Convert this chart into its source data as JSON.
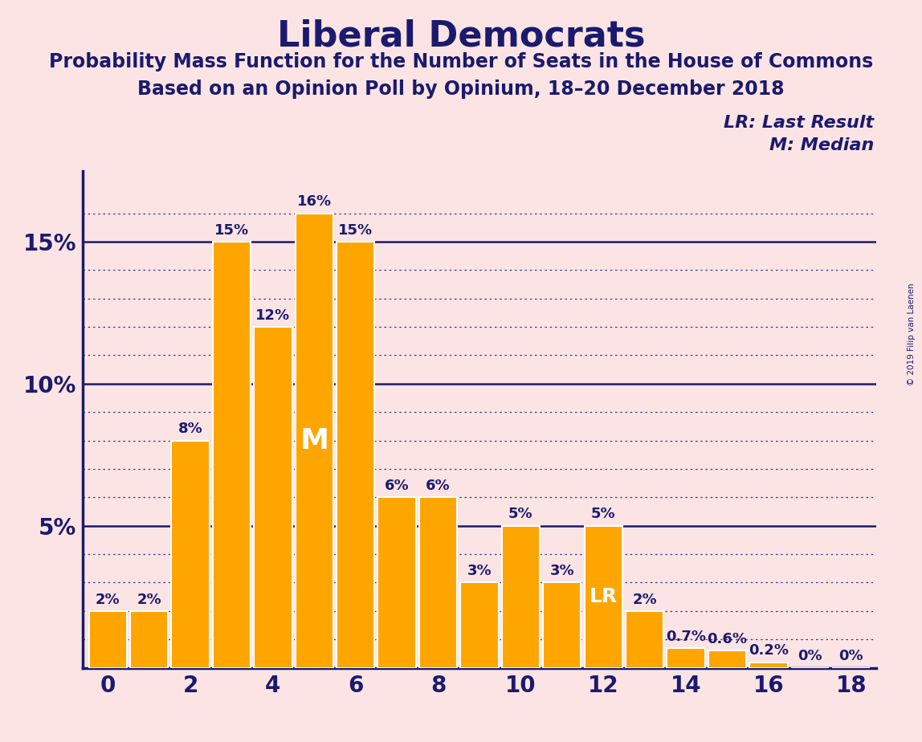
{
  "title": "Liberal Democrats",
  "subtitle1": "Probability Mass Function for the Number of Seats in the House of Commons",
  "subtitle2": "Based on an Opinion Poll by Opinium, 18–20 December 2018",
  "copyright": "© 2019 Filip van Laenen",
  "background_color": "#fce4e4",
  "bar_color": "#FFA500",
  "bar_edge_color": "#ffffff",
  "text_color": "#1a1a6e",
  "axis_color": "#1a1a6e",
  "categories": [
    0,
    1,
    2,
    3,
    4,
    5,
    6,
    7,
    8,
    9,
    10,
    11,
    12,
    13,
    14,
    15,
    16,
    17,
    18
  ],
  "values": [
    2.0,
    2.0,
    8.0,
    15.0,
    12.0,
    16.0,
    15.0,
    6.0,
    6.0,
    3.0,
    5.0,
    3.0,
    5.0,
    2.0,
    0.7,
    0.6,
    0.2,
    0.0,
    0.0
  ],
  "labels": [
    "2%",
    "2%",
    "8%",
    "15%",
    "12%",
    "16%",
    "15%",
    "6%",
    "6%",
    "3%",
    "5%",
    "3%",
    "5%",
    "2%",
    "0.7%",
    "0.6%",
    "0.2%",
    "0%",
    "0%"
  ],
  "median_bar": 5,
  "lr_bar": 12,
  "ylim": [
    0,
    17.5
  ],
  "yticks": [
    0,
    5,
    10,
    15
  ],
  "ytick_labels": [
    "",
    "5%",
    "10%",
    "15%"
  ],
  "xticks": [
    0,
    2,
    4,
    6,
    8,
    10,
    12,
    14,
    16,
    18
  ],
  "legend_lr": "LR: Last Result",
  "legend_m": "M: Median",
  "title_fontsize": 32,
  "subtitle_fontsize": 17,
  "tick_fontsize": 20,
  "label_fontsize": 13,
  "annotation_fontsize": 20,
  "solid_line_color": "#1a1a6e",
  "dotted_line_color": "#1a1a6e",
  "bar_width": 0.92
}
